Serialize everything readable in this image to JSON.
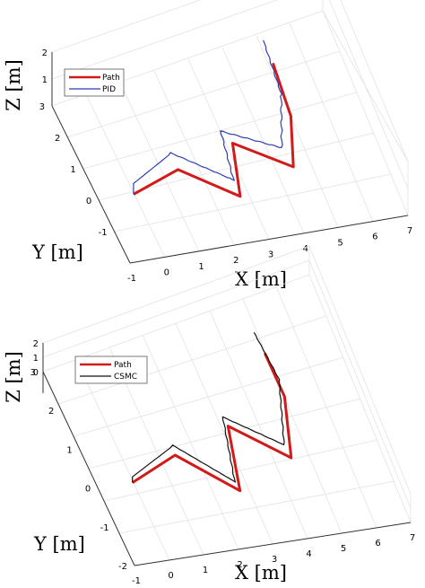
{
  "chart_data": [
    {
      "type": "line",
      "projection": "3d",
      "xlabel": "X [m]",
      "ylabel": "Y [m]",
      "zlabel": "Z [m]",
      "xlim": [
        -1,
        7
      ],
      "ylim": [
        -2,
        3
      ],
      "zlim": [
        0,
        2
      ],
      "xticks": [
        "-1",
        "0",
        "1",
        "2",
        "3",
        "4",
        "5",
        "6",
        "7"
      ],
      "yticks": [
        "-1",
        "0",
        "1",
        "2",
        "3"
      ],
      "zticks": [
        "1",
        "2"
      ],
      "grid": true,
      "legend": "top-left",
      "series": [
        {
          "name": "Path",
          "color": "#d11a1a",
          "points": [
            [
              0,
              0,
              0
            ],
            [
              1.5,
              0.5,
              0
            ],
            [
              2.8,
              -0.6,
              0
            ],
            [
              3.3,
              1.0,
              0
            ],
            [
              4.6,
              0.0,
              0
            ],
            [
              5.2,
              1.5,
              0
            ],
            [
              5.0,
              2.2,
              1.2
            ]
          ]
        },
        {
          "name": "PID",
          "color": "#2f3fb3",
          "points": [
            [
              0,
              0,
              0
            ],
            [
              0,
              0,
              0.4
            ],
            [
              1.4,
              0.7,
              0.4
            ],
            [
              2.7,
              -0.4,
              0.4
            ],
            [
              3.0,
              1.1,
              0.4
            ],
            [
              4.4,
              0.3,
              0.4
            ],
            [
              5.1,
              1.9,
              0.4
            ],
            [
              4.9,
              2.6,
              1.6
            ]
          ]
        }
      ]
    },
    {
      "type": "line",
      "projection": "3d",
      "xlabel": "X [m]",
      "ylabel": "Y [m]",
      "zlabel": "Z [m]",
      "xlim": [
        -1,
        7
      ],
      "ylim": [
        -2,
        3
      ],
      "zlim": [
        0,
        2
      ],
      "xticks": [
        "-1",
        "0",
        "1",
        "2",
        "3",
        "4",
        "5",
        "6",
        "7"
      ],
      "yticks": [
        "-2",
        "-1",
        "0",
        "1",
        "2",
        "3"
      ],
      "zticks": [
        "0",
        "1",
        "2"
      ],
      "grid": true,
      "legend": "top-left",
      "series": [
        {
          "name": "Path",
          "color": "#d11a1a",
          "points": [
            [
              0,
              0,
              0
            ],
            [
              1.5,
              0.5,
              0
            ],
            [
              2.8,
              -0.6,
              0
            ],
            [
              3.3,
              1.0,
              0
            ],
            [
              4.6,
              0.0,
              0
            ],
            [
              5.2,
              1.5,
              0
            ],
            [
              5.0,
              2.2,
              1.2
            ]
          ]
        },
        {
          "name": "CSMC",
          "color": "#111111",
          "points": [
            [
              0,
              0,
              0
            ],
            [
              0,
              0,
              0.4
            ],
            [
              1.5,
              0.6,
              0.4
            ],
            [
              2.7,
              -0.5,
              0.4
            ],
            [
              3.2,
              1.1,
              0.4
            ],
            [
              4.5,
              0.2,
              0.4
            ],
            [
              5.2,
              1.8,
              0.4
            ],
            [
              4.9,
              2.6,
              1.6
            ]
          ]
        }
      ]
    }
  ]
}
